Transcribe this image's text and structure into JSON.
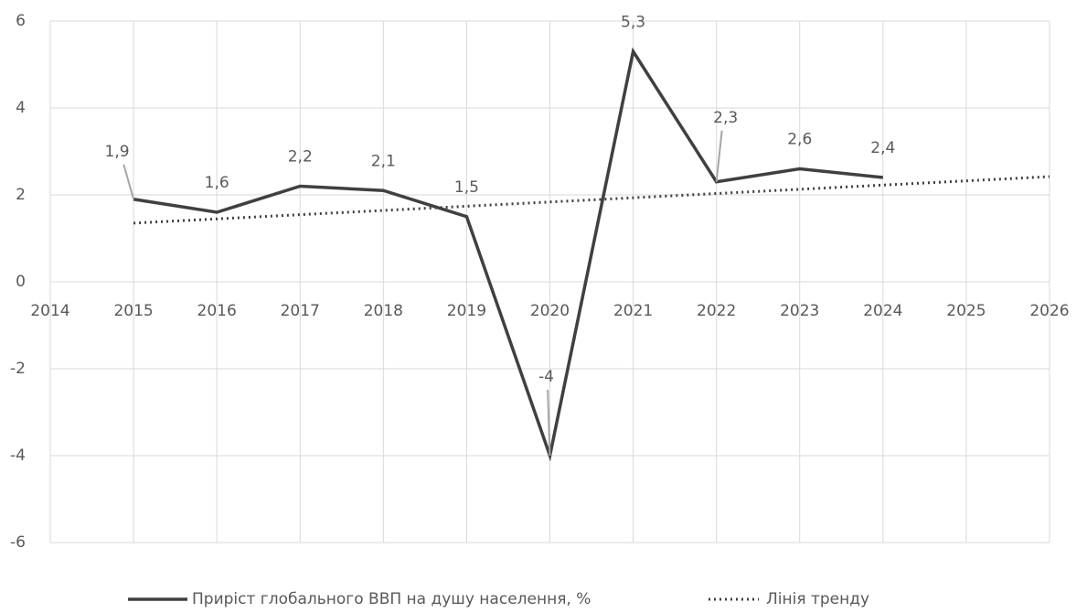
{
  "chart_data": {
    "type": "line",
    "x": [
      2015,
      2016,
      2017,
      2018,
      2019,
      2020,
      2021,
      2022,
      2023,
      2024
    ],
    "series": [
      {
        "name": "Приріст глобального ВВП на душу населення, %",
        "color": "#404040",
        "values": [
          1.9,
          1.6,
          2.2,
          2.1,
          1.5,
          -4,
          5.3,
          2.3,
          2.6,
          2.4
        ],
        "value_labels": [
          "1,9",
          "1,6",
          "2,2",
          "2,1",
          "1,5",
          "-4",
          "5,3",
          "2,3",
          "2,6",
          "2,4"
        ]
      },
      {
        "name": "Лінія тренду",
        "color": "#404040",
        "dash": "dotted",
        "x": [
          2015,
          2026
        ],
        "values": [
          1.35,
          2.42
        ]
      }
    ],
    "xlim": [
      2014,
      2026
    ],
    "xticks": [
      2014,
      2015,
      2016,
      2017,
      2018,
      2019,
      2020,
      2021,
      2022,
      2023,
      2024,
      2025,
      2026
    ],
    "ylim": [
      -6,
      6
    ],
    "yticks": [
      -6,
      -4,
      -2,
      0,
      2,
      4,
      6
    ],
    "grid": true,
    "legend": "bottom"
  }
}
